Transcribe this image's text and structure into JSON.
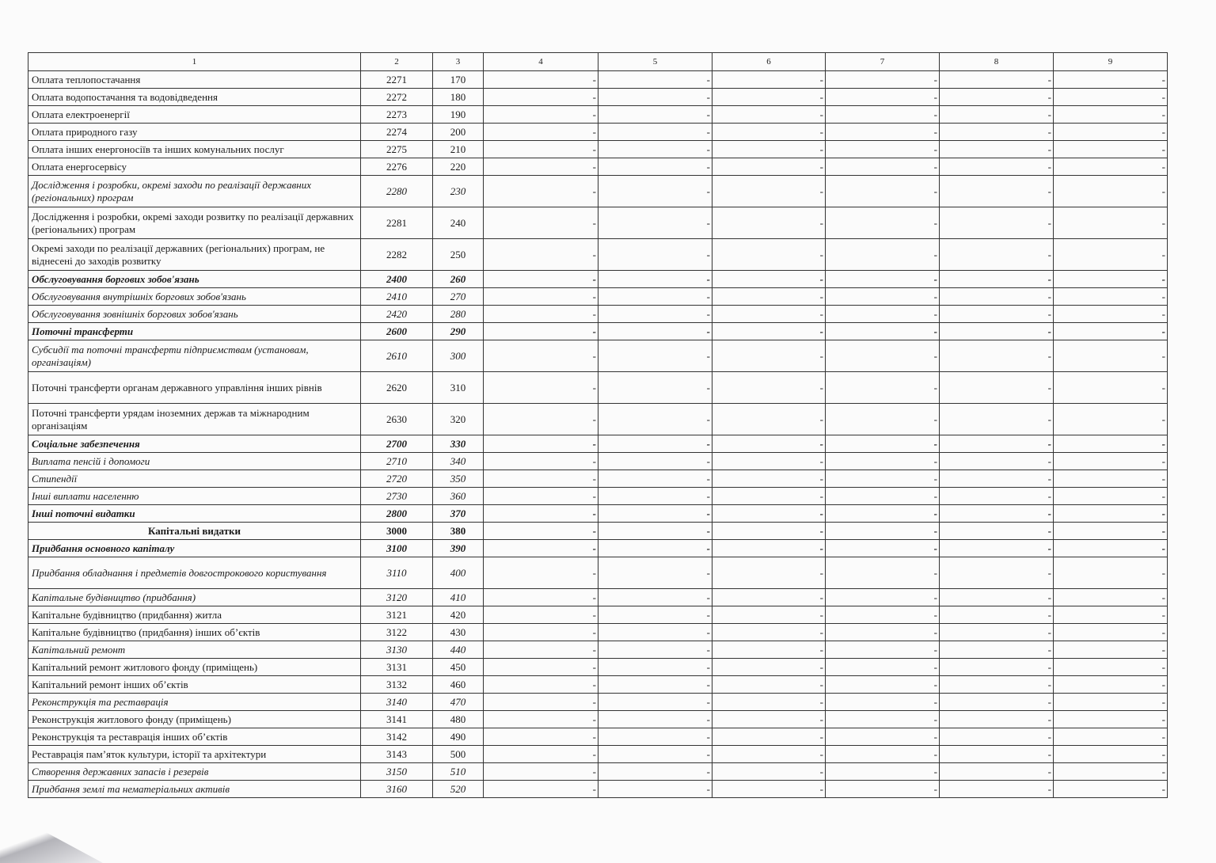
{
  "header": [
    "1",
    "2",
    "3",
    "4",
    "5",
    "6",
    "7",
    "8",
    "9"
  ],
  "rows": [
    {
      "name": "Оплата теплопостачання",
      "code": "2271",
      "line": "170",
      "style": "normal",
      "values": [
        "-",
        "-",
        "-",
        "-",
        "-",
        "-"
      ]
    },
    {
      "name": "Оплата водопостачання  та водовідведення",
      "code": "2272",
      "line": "180",
      "style": "normal",
      "values": [
        "-",
        "-",
        "-",
        "-",
        "-",
        "-"
      ]
    },
    {
      "name": "Оплата електроенергії",
      "code": "2273",
      "line": "190",
      "style": "normal",
      "values": [
        "-",
        "-",
        "-",
        "-",
        "-",
        "-"
      ]
    },
    {
      "name": "Оплата природного газу",
      "code": "2274",
      "line": "200",
      "style": "normal",
      "values": [
        "-",
        "-",
        "-",
        "-",
        "-",
        "-"
      ]
    },
    {
      "name": "Оплата інших енергоносіїв та інших комунальних послуг",
      "code": "2275",
      "line": "210",
      "style": "normal",
      "values": [
        "-",
        "-",
        "-",
        "-",
        "-",
        "-"
      ]
    },
    {
      "name": "Оплата енергосервісу",
      "code": "2276",
      "line": "220",
      "style": "normal",
      "values": [
        "-",
        "-",
        "-",
        "-",
        "-",
        "-"
      ]
    },
    {
      "name": "Дослідження і розробки, окремі заходи по реалізації державних (регіональних) програм",
      "code": "2280",
      "line": "230",
      "style": "italic",
      "tall": true,
      "values": [
        "-",
        "-",
        "-",
        "-",
        "-",
        "-"
      ]
    },
    {
      "name": "Дослідження і розробки, окремі заходи розвитку по реалізації державних   (регіональних) програм",
      "code": "2281",
      "line": "240",
      "style": "normal",
      "tall": true,
      "values": [
        "-",
        "-",
        "-",
        "-",
        "-",
        "-"
      ]
    },
    {
      "name": "Окремі заходи по реалізації державних (регіональних) програм, не віднесені  до заходів розвитку",
      "code": "2282",
      "line": "250",
      "style": "normal",
      "tall": true,
      "values": [
        "-",
        "-",
        "-",
        "-",
        "-",
        "-"
      ]
    },
    {
      "name": "Обслуговування боргових зобов'язань",
      "code": "2400",
      "line": "260",
      "style": "bold-italic",
      "values": [
        "-",
        "-",
        "-",
        "-",
        "-",
        "-"
      ]
    },
    {
      "name": "Обслуговування внутрішніх боргових зобов'язань",
      "code": "2410",
      "line": "270",
      "style": "italic",
      "values": [
        "-",
        "-",
        "-",
        "-",
        "-",
        "-"
      ]
    },
    {
      "name": "Обслуговування зовнішніх боргових зобов'язань",
      "code": "2420",
      "line": "280",
      "style": "italic",
      "values": [
        "-",
        "-",
        "-",
        "-",
        "-",
        "-"
      ]
    },
    {
      "name": "Поточні трансферти",
      "code": "2600",
      "line": "290",
      "style": "bold-italic",
      "values": [
        "-",
        "-",
        "-",
        "-",
        "-",
        "-"
      ]
    },
    {
      "name": "Субсидії та поточні трансферти підприємствам (установам, організаціям)",
      "code": "2610",
      "line": "300",
      "style": "italic",
      "tall": true,
      "values": [
        "-",
        "-",
        "-",
        "-",
        "-",
        "-"
      ]
    },
    {
      "name": "Поточні трансферти органам державного управління інших рівнів",
      "code": "2620",
      "line": "310",
      "style": "normal",
      "tall": true,
      "values": [
        "-",
        "-",
        "-",
        "-",
        "-",
        "-"
      ]
    },
    {
      "name": "Поточні трансферти  урядам іноземних держав та міжнародним організаціям",
      "code": "2630",
      "line": "320",
      "style": "normal",
      "tall": true,
      "values": [
        "-",
        "-",
        "-",
        "-",
        "-",
        "-"
      ]
    },
    {
      "name": "Соціальне забезпечення",
      "code": "2700",
      "line": "330",
      "style": "bold-italic",
      "values": [
        "-",
        "-",
        "-",
        "-",
        "-",
        "-"
      ]
    },
    {
      "name": "Виплата пенсій і допомоги",
      "code": "2710",
      "line": "340",
      "style": "italic",
      "values": [
        "-",
        "-",
        "-",
        "-",
        "-",
        "-"
      ]
    },
    {
      "name": "Стипендії",
      "code": "2720",
      "line": "350",
      "style": "italic",
      "values": [
        "-",
        "-",
        "-",
        "-",
        "-",
        "-"
      ]
    },
    {
      "name": "Інші виплати населенню",
      "code": "2730",
      "line": "360",
      "style": "italic",
      "values": [
        "-",
        "-",
        "-",
        "-",
        "-",
        "-"
      ]
    },
    {
      "name": "Інші поточні видатки",
      "code": "2800",
      "line": "370",
      "style": "bold-italic",
      "values": [
        "-",
        "-",
        "-",
        "-",
        "-",
        "-"
      ]
    },
    {
      "name": "Капітальні видатки",
      "code": "3000",
      "line": "380",
      "style": "bold-center",
      "values": [
        "-",
        "-",
        "-",
        "-",
        "-",
        "-"
      ]
    },
    {
      "name": "Придбання основного капіталу",
      "code": "3100",
      "line": "390",
      "style": "bold-italic",
      "values": [
        "-",
        "-",
        "-",
        "-",
        "-",
        "-"
      ]
    },
    {
      "name": "Придбання обладнання і предметів довгострокового користування",
      "code": "3110",
      "line": "400",
      "style": "italic",
      "tall": true,
      "values": [
        "-",
        "-",
        "-",
        "-",
        "-",
        "-"
      ]
    },
    {
      "name": "Капітальне будівництво (придбання)",
      "code": "3120",
      "line": "410",
      "style": "italic",
      "values": [
        "-",
        "-",
        "-",
        "-",
        "-",
        "-"
      ]
    },
    {
      "name": " Капітальне будівництво (придбання) житла",
      "code": "3121",
      "line": "420",
      "style": "normal",
      "values": [
        "-",
        "-",
        "-",
        "-",
        "-",
        "-"
      ]
    },
    {
      "name": " Капітальне  будівництво (придбання) інших об’єктів",
      "code": "3122",
      "line": "430",
      "style": "normal",
      "values": [
        "-",
        "-",
        "-",
        "-",
        "-",
        "-"
      ]
    },
    {
      "name": "Капітальний ремонт",
      "code": "3130",
      "line": "440",
      "style": "italic",
      "values": [
        "-",
        "-",
        "-",
        "-",
        "-",
        "-"
      ]
    },
    {
      "name": " Капітальний ремонт житлового фонду (приміщень)",
      "code": "3131",
      "line": "450",
      "style": "normal",
      "values": [
        "-",
        "-",
        "-",
        "-",
        "-",
        "-"
      ]
    },
    {
      "name": " Капітальний ремонт інших об’єктів",
      "code": "3132",
      "line": "460",
      "style": "normal",
      "values": [
        "-",
        "-",
        "-",
        "-",
        "-",
        "-"
      ]
    },
    {
      "name": "Реконструкція  та  реставрація",
      "code": "3140",
      "line": "470",
      "style": "italic",
      "values": [
        "-",
        "-",
        "-",
        "-",
        "-",
        "-"
      ]
    },
    {
      "name": " Реконструкція житлового фонду (приміщень)",
      "code": "3141",
      "line": "480",
      "style": "normal",
      "values": [
        "-",
        "-",
        "-",
        "-",
        "-",
        "-"
      ]
    },
    {
      "name": " Реконструкція та реставрація  інших об’єктів",
      "code": "3142",
      "line": "490",
      "style": "normal",
      "values": [
        "-",
        "-",
        "-",
        "-",
        "-",
        "-"
      ]
    },
    {
      "name": " Реставрація пам’яток культури, історії та архітектури",
      "code": "3143",
      "line": "500",
      "style": "normal",
      "values": [
        "-",
        "-",
        "-",
        "-",
        "-",
        "-"
      ]
    },
    {
      "name": "Створення державних запасів і резервів",
      "code": "3150",
      "line": "510",
      "style": "italic",
      "values": [
        "-",
        "-",
        "-",
        "-",
        "-",
        "-"
      ]
    },
    {
      "name": "Придбання землі  та нематеріальних активів",
      "code": "3160",
      "line": "520",
      "style": "italic",
      "values": [
        "-",
        "-",
        "-",
        "-",
        "-",
        "-"
      ]
    }
  ]
}
